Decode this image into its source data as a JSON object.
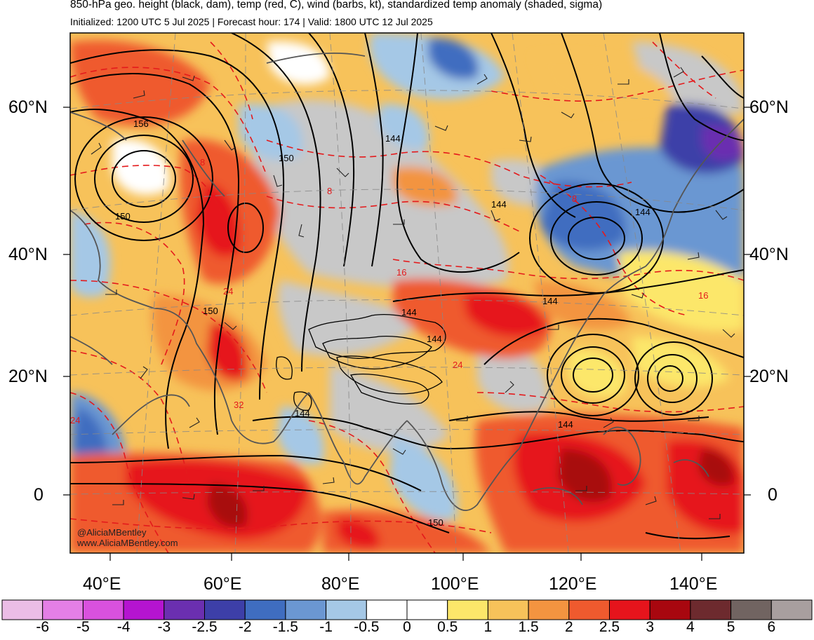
{
  "header": {
    "title": "850-hPa geo. height (black, dam), temp (red, C), wind (barbs, kt), standardized temp anomaly (shaded, sigma)",
    "subtitle": "Initialized: 1200 UTC 5 Jul 2025 | Forecast hour: 174 | Valid: 1800 UTC 12 Jul 2025"
  },
  "map": {
    "lat_labels": [
      "60°N",
      "40°N",
      "20°N",
      "0"
    ],
    "lon_labels": [
      "40°E",
      "60°E",
      "80°E",
      "100°E",
      "120°E",
      "140°E"
    ],
    "height_contour_labels": [
      "156",
      "150",
      "144",
      "150",
      "144",
      "144",
      "144",
      "144",
      "144",
      "144",
      "150",
      "144",
      "150"
    ],
    "temp_contour_labels": [
      "8",
      "8",
      "8",
      "16",
      "16",
      "24",
      "24",
      "32",
      "24"
    ],
    "watermark_handle": "@AliciaMBentley",
    "watermark_site": "www.AliciaMBentley.com",
    "colors": {
      "warm_strong": "#e31a1c",
      "warm": "#fd8d3c",
      "neutral": "#c8c8c8",
      "cool": "#6baed6",
      "cold": "#3f51b5",
      "height_contour": "#000000",
      "temp_contour": "#e41a1c",
      "coastline": "#555555"
    }
  },
  "colorbar": {
    "labels": [
      "-6",
      "-5",
      "-4",
      "-3",
      "-2.5",
      "-2",
      "-1.5",
      "-1",
      "-0.5",
      "0",
      "0.5",
      "1",
      "1.5",
      "2",
      "2.5",
      "3",
      "4",
      "5",
      "6"
    ],
    "colors": [
      "#ebbde6",
      "#e47fe6",
      "#d951de",
      "#b514d0",
      "#6b2fb0",
      "#3d3fa8",
      "#3f6dc0",
      "#6b97d2",
      "#a5c8e6",
      "#ffffff",
      "#ffffff",
      "#fce76a",
      "#f7c25a",
      "#f39440",
      "#ef5a2e",
      "#e6141c",
      "#a8070f",
      "#6d2a2e",
      "#716461",
      "#a89f9f"
    ]
  }
}
